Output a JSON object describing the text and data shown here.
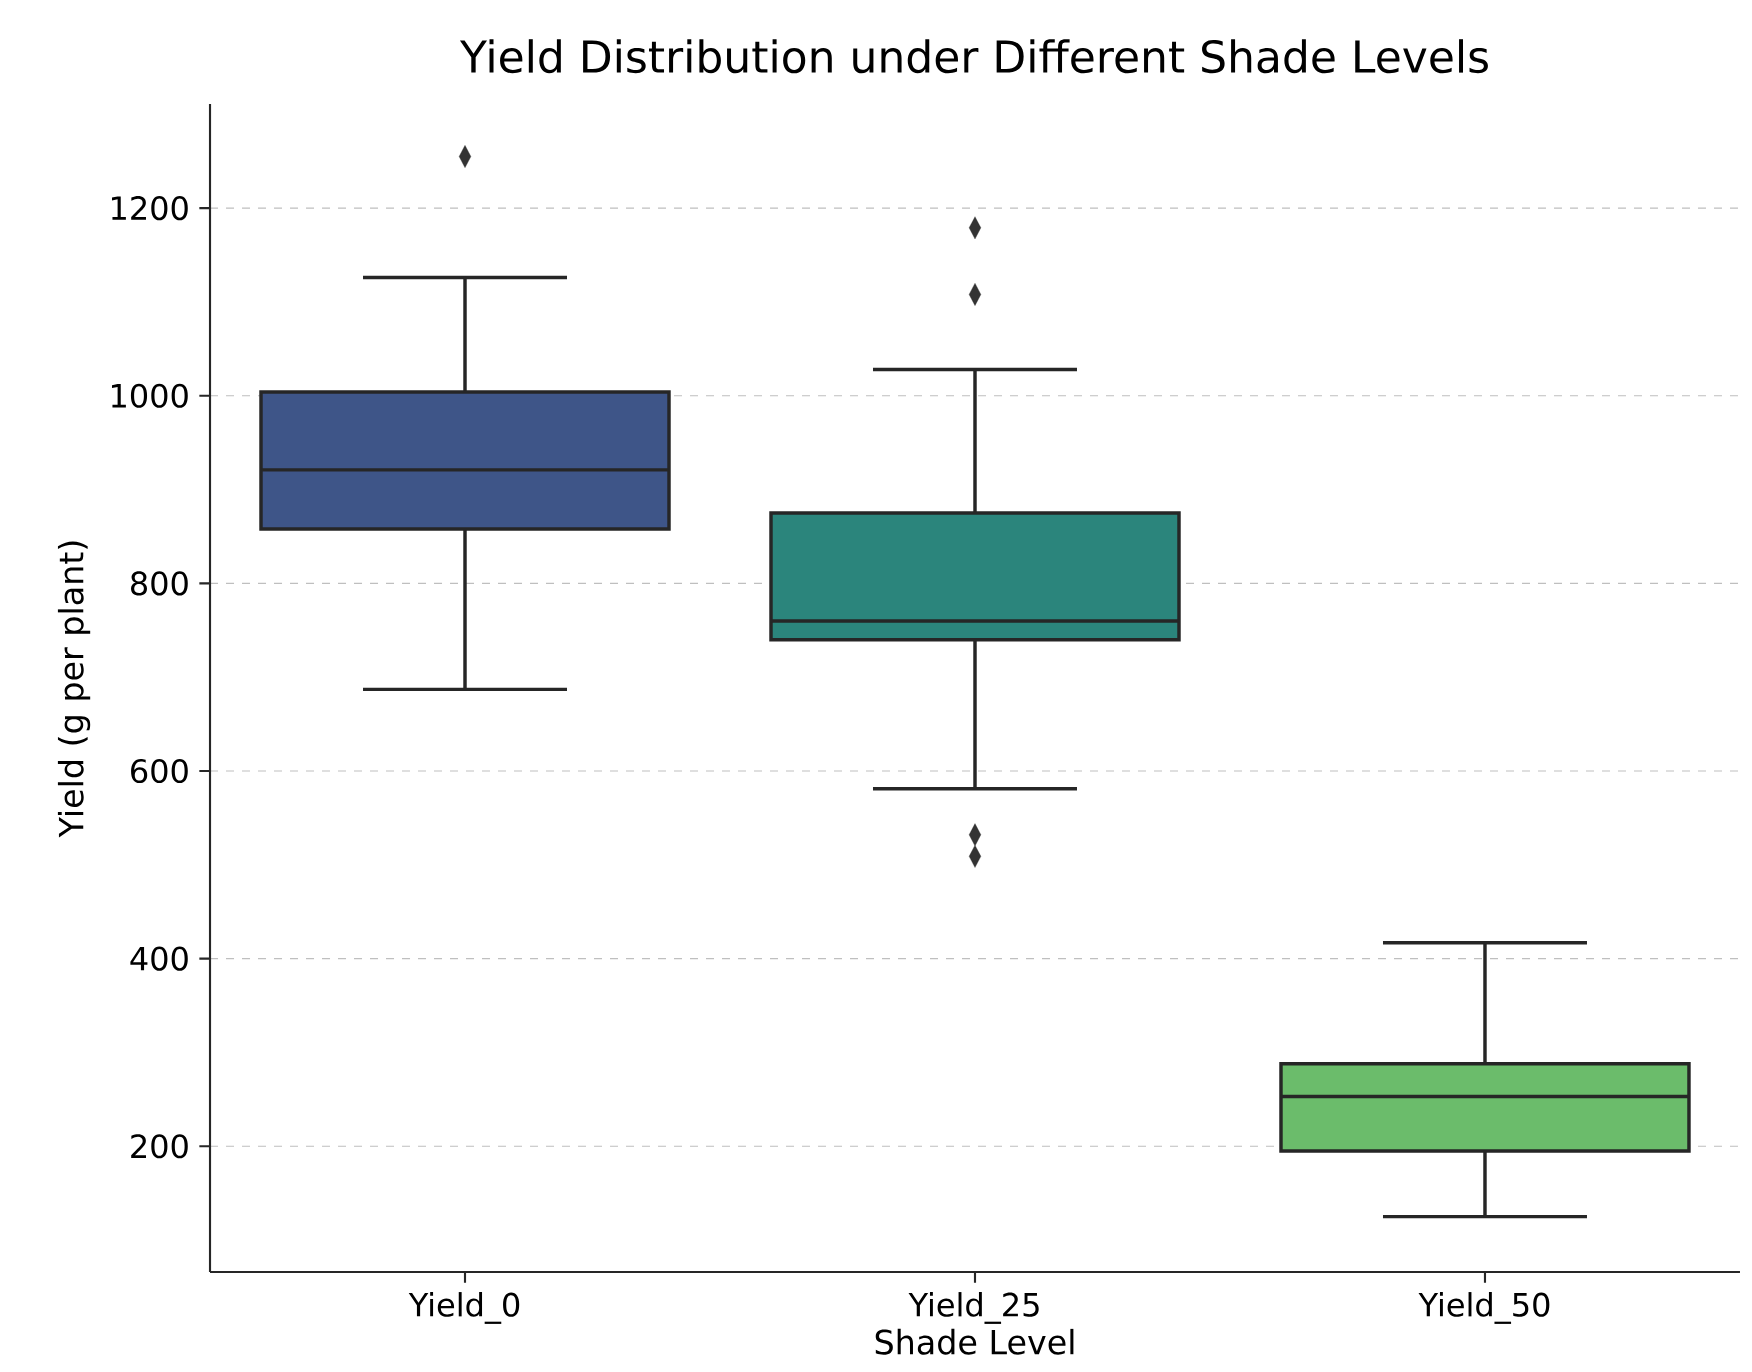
{
  "chart_data": {
    "type": "box",
    "title": "Yield Distribution under Different Shade Levels",
    "xlabel": "Shade Level",
    "ylabel": "Yield (g per plant)",
    "categories": [
      "Yield_0",
      "Yield_25",
      "Yield_50"
    ],
    "boxes": [
      {
        "low": 687,
        "q1": 858,
        "median": 921,
        "q3": 1004,
        "high": 1126,
        "outliers": [
          1255
        ]
      },
      {
        "low": 581,
        "q1": 740,
        "median": 760,
        "q3": 875,
        "high": 1028,
        "outliers": [
          1179,
          1108,
          532,
          509
        ]
      },
      {
        "low": 125,
        "q1": 195,
        "median": 253,
        "q3": 288,
        "high": 417
      }
    ],
    "colors": [
      "#3e5588",
      "#2b857c",
      "#6bbc6b"
    ],
    "ylim": [
      66,
      1311
    ],
    "yticks": [
      200,
      400,
      600,
      800,
      1000,
      1200
    ],
    "grid": "y",
    "marker": "diamond"
  }
}
